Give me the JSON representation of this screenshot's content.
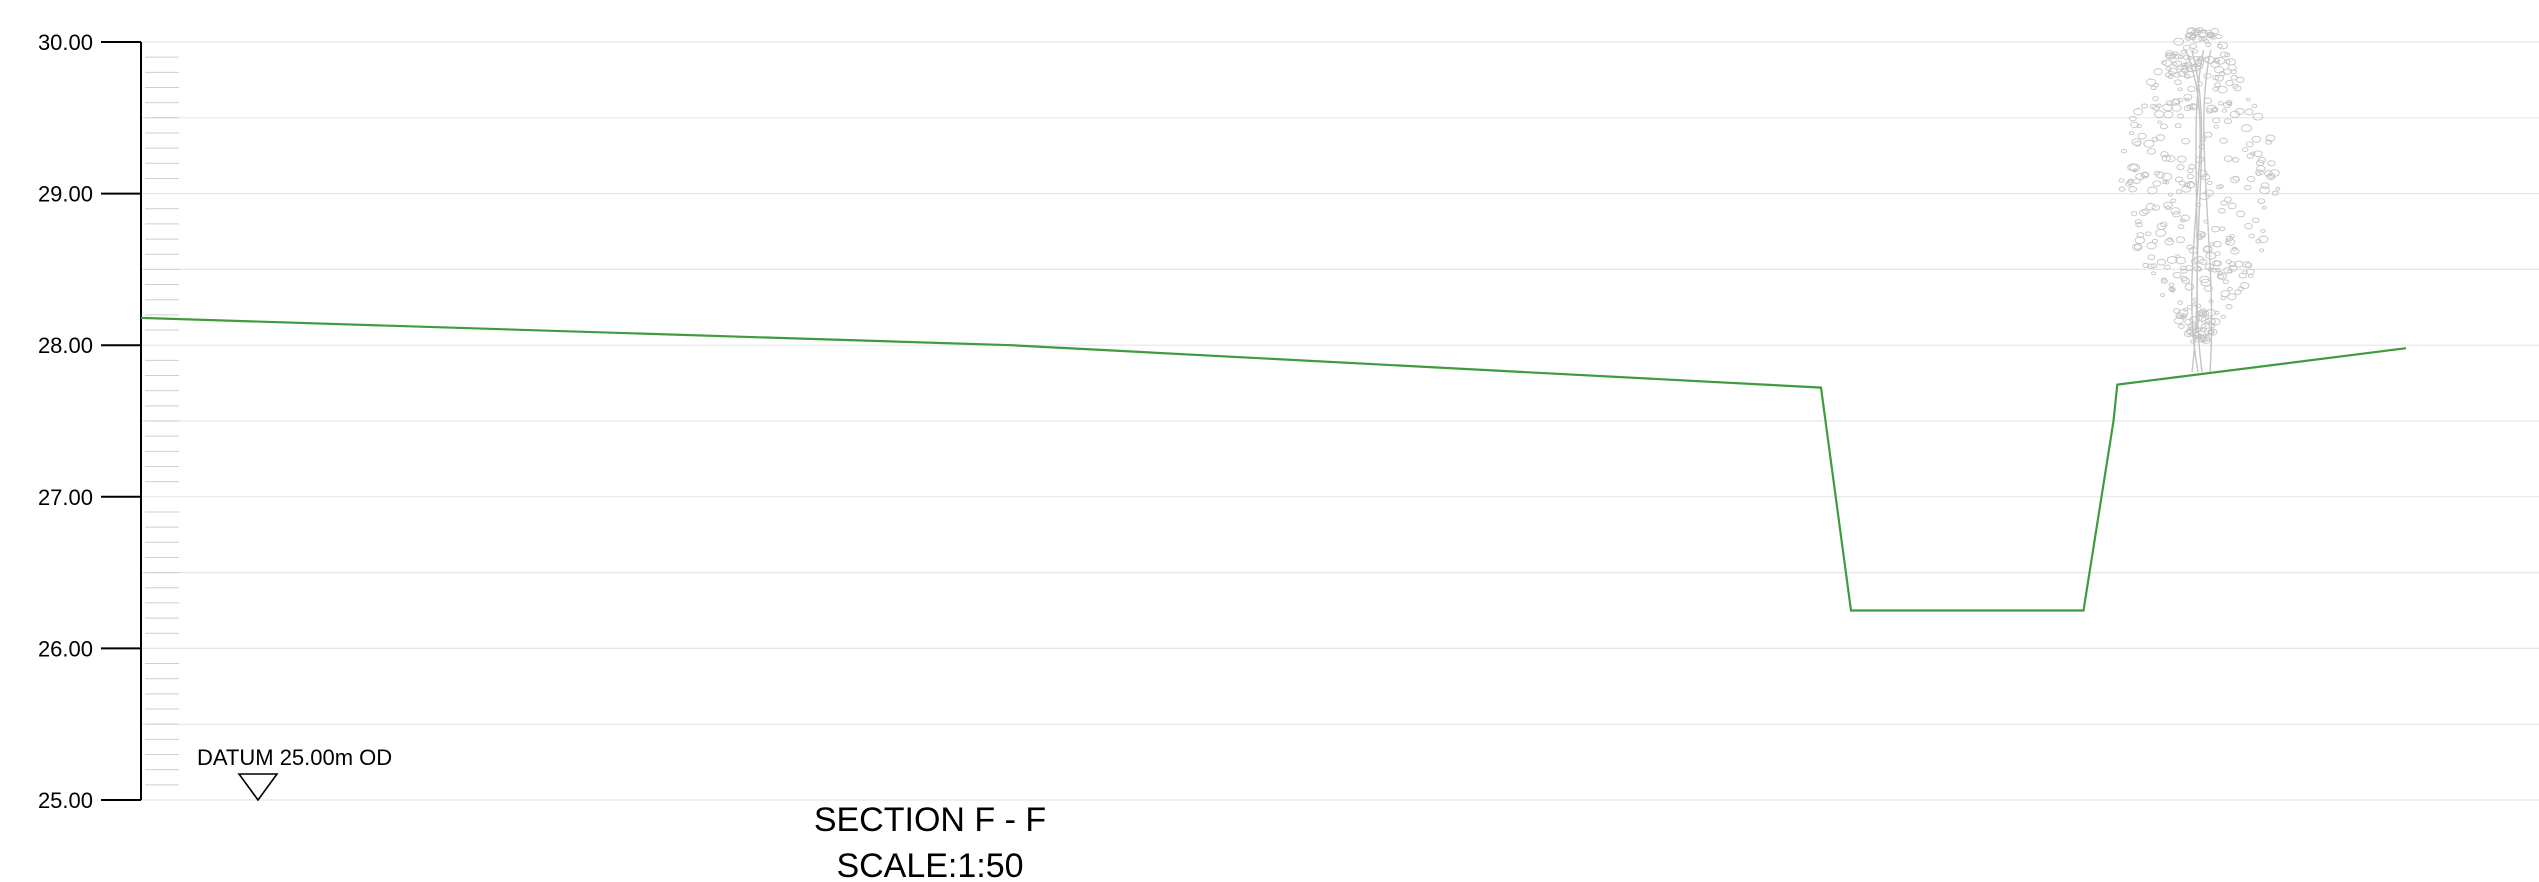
{
  "colors": {
    "ground": "#3f9b3f",
    "axis": "#000000",
    "grid": "#e6e6e6",
    "minor_tick": "#cfcfcf",
    "tree": "#c4c4c4"
  },
  "axis": {
    "ylim": [
      25.0,
      30.0
    ],
    "major_ticks": [
      "30.00",
      "29.00",
      "28.00",
      "27.00",
      "26.00",
      "25.00"
    ],
    "minor_step": 0.1,
    "grid_step": 0.5
  },
  "datum": {
    "label": "DATUM 25.00m OD",
    "level": 25.0
  },
  "title": {
    "section": "SECTION F - F",
    "scale": "SCALE:1:50"
  },
  "chart_data": {
    "type": "line",
    "title": "SECTION F - F",
    "subtitle": "SCALE:1:50",
    "xlabel": "",
    "ylabel": "",
    "ylim": [
      25.0,
      30.0
    ],
    "x_unit": "m",
    "grid": true,
    "series": [
      {
        "x": [
          0.0,
          13.92,
          26.88,
          27.36,
          31.08,
          31.56,
          31.62,
          36.24
        ],
        "y": [
          28.18,
          28.0,
          27.72,
          26.25,
          26.25,
          27.5,
          27.74,
          27.98
        ]
      }
    ],
    "annotations": [
      "DATUM 25.00m OD"
    ]
  }
}
